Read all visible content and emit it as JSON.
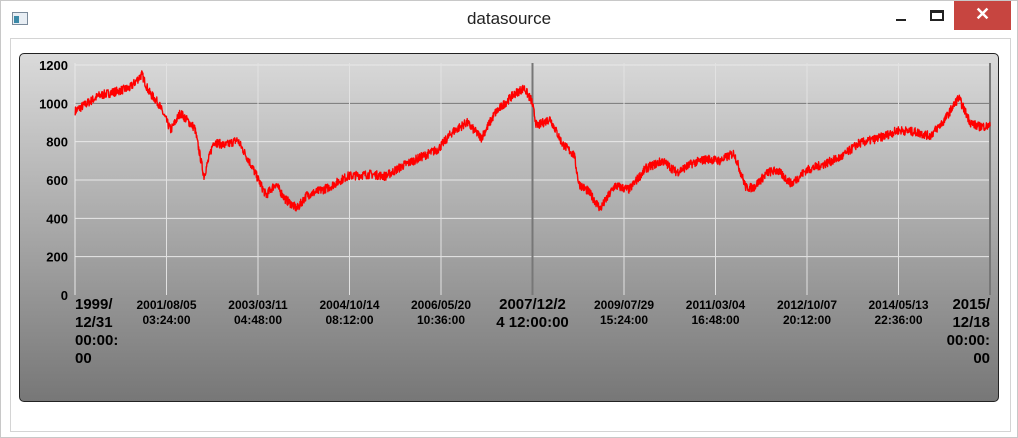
{
  "window": {
    "title": "datasource",
    "icon": "app-window-icon",
    "controls": {
      "minimize": "minimize-icon",
      "maximize": "maximize-icon",
      "close": "✕"
    }
  },
  "colors": {
    "series": "#ff0000",
    "close_button": "#c74540",
    "panel_top": "#dadada",
    "panel_bottom": "#777777"
  },
  "chart_data": {
    "type": "line",
    "title": "",
    "xlabel": "",
    "ylabel": "",
    "ylim": [
      0,
      1200
    ],
    "yticks": [
      "0",
      "200",
      "400",
      "600",
      "800",
      "1000",
      "1200"
    ],
    "xlim": [
      "1999/12/31 00:00:00",
      "2015/12/18 00:00:00"
    ],
    "xtick_labels": [
      {
        "line1": "1999/",
        "line2": "12/31",
        "line3": "00:00:",
        "line4": "00",
        "major": true
      },
      {
        "line1": "2001/08/05",
        "line2": "03:24:00",
        "major": false
      },
      {
        "line1": "2003/03/11",
        "line2": "04:48:00",
        "major": false
      },
      {
        "line1": "2004/10/14",
        "line2": "08:12:00",
        "major": false
      },
      {
        "line1": "2006/05/20",
        "line2": "10:36:00",
        "major": false
      },
      {
        "line1": "2007/12/2",
        "line2": "4 12:00:00",
        "major": true
      },
      {
        "line1": "2009/07/29",
        "line2": "15:24:00",
        "major": false
      },
      {
        "line1": "2011/03/04",
        "line2": "16:48:00",
        "major": false
      },
      {
        "line1": "2012/10/07",
        "line2": "20:12:00",
        "major": false
      },
      {
        "line1": "2014/05/13",
        "line2": "22:36:00",
        "major": false
      },
      {
        "line1": "2015/",
        "line2": "12/18",
        "line3": "00:00:",
        "line4": "00",
        "major": true
      }
    ],
    "grid": true,
    "legend": "none",
    "series": [
      {
        "color": "#ff0000",
        "points": [
          [
            "2000-01-01",
            960
          ],
          [
            "2000-06-01",
            1040
          ],
          [
            "2000-12-15",
            1080
          ],
          [
            "2001-03-01",
            1150
          ],
          [
            "2001-04-15",
            1060
          ],
          [
            "2001-06-15",
            1000
          ],
          [
            "2001-09-01",
            860
          ],
          [
            "2001-11-01",
            950
          ],
          [
            "2002-02-01",
            870
          ],
          [
            "2002-04-01",
            620
          ],
          [
            "2002-06-01",
            800
          ],
          [
            "2002-08-15",
            780
          ],
          [
            "2002-11-01",
            810
          ],
          [
            "2003-02-01",
            670
          ],
          [
            "2003-05-01",
            520
          ],
          [
            "2003-07-01",
            580
          ],
          [
            "2003-09-01",
            500
          ],
          [
            "2003-11-15",
            450
          ],
          [
            "2004-01-15",
            520
          ],
          [
            "2004-06-01",
            560
          ],
          [
            "2004-10-01",
            620
          ],
          [
            "2005-03-01",
            630
          ],
          [
            "2005-06-01",
            620
          ],
          [
            "2005-10-01",
            680
          ],
          [
            "2006-01-15",
            720
          ],
          [
            "2006-05-01",
            760
          ],
          [
            "2006-08-01",
            850
          ],
          [
            "2006-11-01",
            900
          ],
          [
            "2007-02-01",
            820
          ],
          [
            "2007-05-01",
            950
          ],
          [
            "2007-07-01",
            1000
          ],
          [
            "2007-09-01",
            1050
          ],
          [
            "2007-11-01",
            1080
          ],
          [
            "2007-12-20",
            1010
          ],
          [
            "2008-01-20",
            880
          ],
          [
            "2008-04-15",
            920
          ],
          [
            "2008-07-01",
            790
          ],
          [
            "2008-09-15",
            730
          ],
          [
            "2008-10-15",
            580
          ],
          [
            "2008-12-15",
            540
          ],
          [
            "2009-03-01",
            450
          ],
          [
            "2009-06-01",
            570
          ],
          [
            "2009-09-01",
            550
          ],
          [
            "2009-12-15",
            660
          ],
          [
            "2010-04-01",
            700
          ],
          [
            "2010-07-01",
            640
          ],
          [
            "2010-10-15",
            690
          ],
          [
            "2011-01-15",
            710
          ],
          [
            "2011-04-01",
            700
          ],
          [
            "2011-07-01",
            740
          ],
          [
            "2011-09-15",
            560
          ],
          [
            "2011-11-01",
            560
          ],
          [
            "2012-02-01",
            640
          ],
          [
            "2012-04-01",
            650
          ],
          [
            "2012-07-01",
            580
          ],
          [
            "2012-10-01",
            650
          ],
          [
            "2013-01-15",
            680
          ],
          [
            "2013-05-15",
            720
          ],
          [
            "2013-09-01",
            790
          ],
          [
            "2014-01-15",
            820
          ],
          [
            "2014-05-15",
            860
          ],
          [
            "2014-09-01",
            850
          ],
          [
            "2014-12-01",
            830
          ],
          [
            "2015-03-01",
            910
          ],
          [
            "2015-06-01",
            1030
          ],
          [
            "2015-08-15",
            900
          ],
          [
            "2015-10-01",
            880
          ],
          [
            "2015-12-18",
            880
          ]
        ]
      }
    ]
  }
}
